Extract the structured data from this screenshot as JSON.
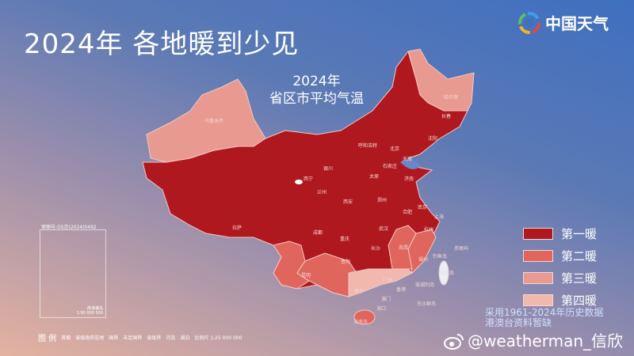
{
  "header": {
    "title": "2024年  各地暖到少见",
    "logo_text": "中国天气",
    "logo_icon": "pinwheel-logo-icon"
  },
  "map": {
    "subtitle_line1": "2024年",
    "subtitle_line2": "省区市平均气温",
    "colors": {
      "rank1": "#b0181f",
      "rank2": "#e0665d",
      "rank3": "#e99a90",
      "rank4": "#f1b8ae",
      "water": "#5aa0e0"
    },
    "province_ranks": {
      "新疆": 3,
      "黑龙江": 3,
      "云南": 2,
      "广西": 2,
      "江西": 2,
      "福建": 2,
      "海南": 2,
      "广东": 4,
      "上海": 2,
      "others": 1
    },
    "cities": [
      "乌鲁木齐",
      "哈尔滨",
      "长春",
      "沈阳",
      "呼和浩特",
      "北京",
      "天津",
      "石家庄",
      "太原",
      "济南",
      "银川",
      "西宁",
      "兰州",
      "西安",
      "郑州",
      "合肥",
      "南京",
      "上海",
      "杭州",
      "武汉",
      "长沙",
      "南昌",
      "福州",
      "拉萨",
      "成都",
      "重庆",
      "贵阳",
      "昆明",
      "南宁",
      "广州",
      "香港",
      "澳门",
      "海口",
      "海南岛",
      "台湾岛",
      "钓鱼岛",
      "赤尾屿",
      "澎湖列岛",
      "东沙群岛"
    ]
  },
  "legend": {
    "items": [
      "第一暖",
      "第二暖",
      "第三暖",
      "第四暖"
    ]
  },
  "inset": {
    "approval_code": "审图号:GS京(2024)0492",
    "name": "南海诸岛",
    "scale": "1:50 000 000"
  },
  "map_legend": {
    "heading": "图 例",
    "items": [
      "首都",
      "省级政府驻地",
      "国界",
      "未定国界",
      "省级界",
      "河流",
      "湖泊",
      "比例尺 1:25 000 000"
    ]
  },
  "source": {
    "line1": "采用1961-2024年历史数据",
    "line2": "港澳台资料暂缺"
  },
  "watermark": {
    "text": "@weatherman_信欣",
    "icon": "weibo-icon"
  }
}
